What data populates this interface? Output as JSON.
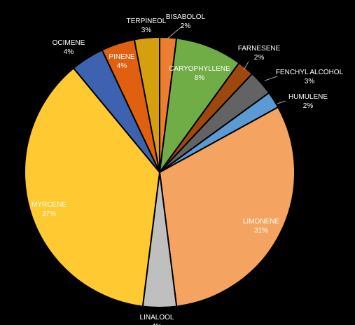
{
  "chart_data": {
    "type": "pie",
    "title": "",
    "start_angle_deg": 0,
    "direction": "clockwise",
    "slice_border_color": "#000000",
    "background_color": "#000000",
    "label_color_outside": "#ffffff",
    "slices": [
      {
        "name": "BISABOLOL",
        "value": 2,
        "label": "2%",
        "color": "#ed7d31",
        "label_position": "outside",
        "leader_line": true
      },
      {
        "name": "CARYOPHYLLENE",
        "value": 8,
        "label": "8%",
        "color": "#70ad47",
        "label_position": "inside",
        "leader_line": false
      },
      {
        "name": "FARNESENE",
        "value": 2,
        "label": "2%",
        "color": "#9e480e",
        "label_position": "outside",
        "leader_line": true
      },
      {
        "name": "FENCHYL ALCOHOL",
        "value": 3,
        "label": "3%",
        "color": "#636363",
        "label_position": "outside",
        "leader_line": true
      },
      {
        "name": "HUMULENE",
        "value": 2,
        "label": "2%",
        "color": "#5b9bd5",
        "label_position": "outside",
        "leader_line": true
      },
      {
        "name": "LIMONENE",
        "value": 31,
        "label": "31%",
        "color": "#f4a460",
        "label_position": "inside",
        "leader_line": false
      },
      {
        "name": "LINALOOL",
        "value": 4,
        "label": "4%",
        "color": "#bfbfbf",
        "label_position": "outside",
        "leader_line": false
      },
      {
        "name": "MYRCENE",
        "value": 37,
        "label": "37%",
        "color": "#ffc931",
        "label_position": "inside",
        "leader_line": false
      },
      {
        "name": "OCIMENE",
        "value": 4,
        "label": "4%",
        "color": "#3d62b0",
        "label_position": "outside",
        "leader_line": false
      },
      {
        "name": "PINENE",
        "value": 4,
        "label": "4%",
        "color": "#e06010",
        "label_position": "inside",
        "leader_line": false
      },
      {
        "name": "TERPINEOL",
        "value": 3,
        "label": "3%",
        "color": "#d4a00e",
        "label_position": "outside",
        "leader_line": false
      }
    ]
  }
}
